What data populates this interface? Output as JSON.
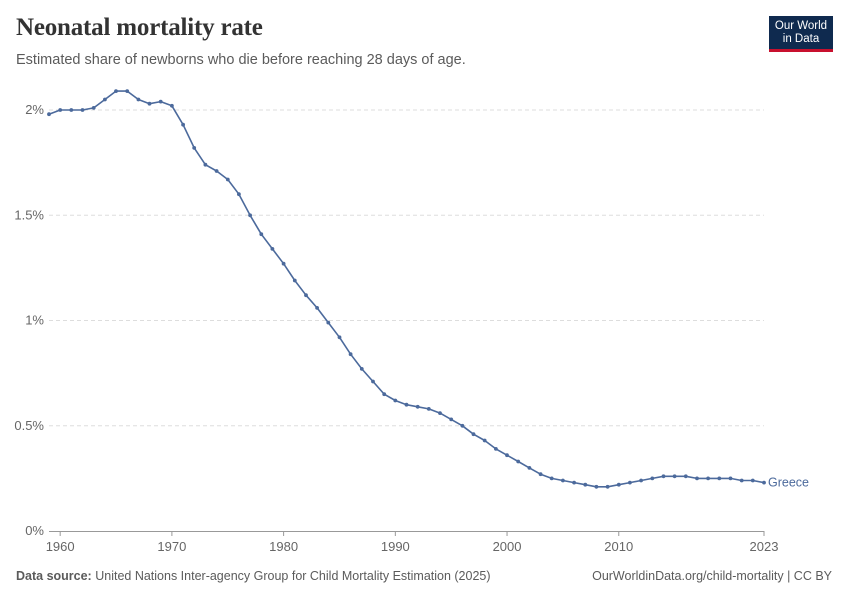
{
  "header": {
    "title": "Neonatal mortality rate",
    "subtitle": "Estimated share of newborns who die before reaching 28 days of age."
  },
  "logo": {
    "line1": "Our World",
    "line2": "in Data"
  },
  "footer": {
    "source_label": "Data source:",
    "source_text": "United Nations Inter-agency Group for Child Mortality Estimation (2025)",
    "link_text": "OurWorldinData.org/child-mortality",
    "separator": " | ",
    "license": "CC BY"
  },
  "colors": {
    "series": "#4c6a9c",
    "grid": "#dddddd",
    "axis": "#666666",
    "logo_bg": "#0f2a4f",
    "logo_accent": "#c8102e"
  },
  "chart_data": {
    "type": "line",
    "xlim": [
      1959,
      2023
    ],
    "ylim": [
      0,
      2
    ],
    "x_ticks": [
      1960,
      1970,
      1980,
      1990,
      2000,
      2010,
      2023
    ],
    "y_ticks": [
      0,
      0.5,
      1,
      1.5,
      2
    ],
    "y_tick_labels": [
      "0%",
      "0.5%",
      "1%",
      "1.5%",
      "2%"
    ],
    "grid": "horizontal dashed",
    "series": [
      {
        "name": "Greece",
        "x": [
          1959,
          1960,
          1961,
          1962,
          1963,
          1964,
          1965,
          1966,
          1967,
          1968,
          1969,
          1970,
          1971,
          1972,
          1973,
          1974,
          1975,
          1976,
          1977,
          1978,
          1979,
          1980,
          1981,
          1982,
          1983,
          1984,
          1985,
          1986,
          1987,
          1988,
          1989,
          1990,
          1991,
          1992,
          1993,
          1994,
          1995,
          1996,
          1997,
          1998,
          1999,
          2000,
          2001,
          2002,
          2003,
          2004,
          2005,
          2006,
          2007,
          2008,
          2009,
          2010,
          2011,
          2012,
          2013,
          2014,
          2015,
          2016,
          2017,
          2018,
          2019,
          2020,
          2021,
          2022,
          2023
        ],
        "y": [
          1.98,
          2.0,
          2.0,
          2.0,
          2.01,
          2.05,
          2.09,
          2.09,
          2.05,
          2.03,
          2.04,
          2.02,
          1.93,
          1.82,
          1.74,
          1.71,
          1.67,
          1.6,
          1.5,
          1.41,
          1.34,
          1.27,
          1.19,
          1.12,
          1.06,
          0.99,
          0.92,
          0.84,
          0.77,
          0.71,
          0.65,
          0.62,
          0.6,
          0.59,
          0.58,
          0.56,
          0.53,
          0.5,
          0.46,
          0.43,
          0.39,
          0.36,
          0.33,
          0.3,
          0.27,
          0.25,
          0.24,
          0.23,
          0.22,
          0.21,
          0.21,
          0.22,
          0.23,
          0.24,
          0.25,
          0.26,
          0.26,
          0.26,
          0.25,
          0.25,
          0.25,
          0.25,
          0.24,
          0.24,
          0.23
        ]
      }
    ]
  }
}
